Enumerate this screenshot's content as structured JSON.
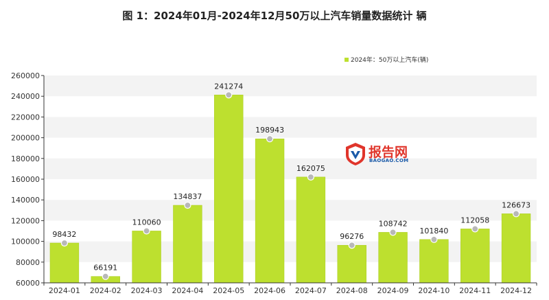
{
  "title": "图 1：2024年01月-2024年12月50万以上汽车销量数据统计 辆",
  "watermark": {
    "text": "报告网",
    "subtext": "BAOGAO.COM"
  },
  "colors": {
    "bar": "#bde02f",
    "bar_edge": "#a9cc1f",
    "band": "#f3f3f3",
    "axis": "#333333",
    "marker": "#b8b8b8"
  },
  "chart_data": {
    "type": "bar",
    "categories": [
      "2024-01",
      "2024-02",
      "2024-03",
      "2024-04",
      "2024-05",
      "2024-06",
      "2024-07",
      "2024-08",
      "2024-09",
      "2024-10",
      "2024-11",
      "2024-12"
    ],
    "series": [
      {
        "name": "2024年：50万以上汽车(辆)",
        "values": [
          98432,
          66191,
          110060,
          134837,
          241274,
          198943,
          162075,
          96276,
          108742,
          101840,
          112058,
          126673
        ]
      }
    ],
    "yticks": [
      60000,
      80000,
      100000,
      120000,
      140000,
      160000,
      180000,
      200000,
      220000,
      240000,
      260000
    ],
    "ylim": [
      60000,
      260000
    ],
    "legend": "top-right",
    "grid": "alternating horizontal bands"
  }
}
